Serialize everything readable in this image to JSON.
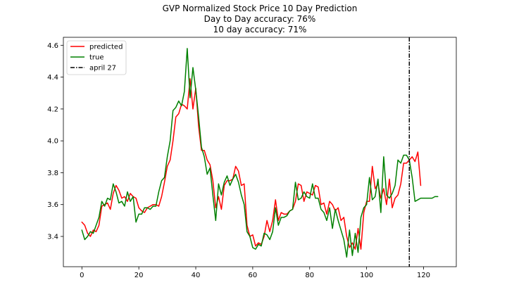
{
  "chart_data": {
    "type": "line",
    "title_lines": [
      "GVP Normalized Stock Price 10 Day Prediction",
      "Day to Day accuracy: 76%",
      "10 day accuracy: 71%"
    ],
    "xlabel": "",
    "ylabel": "",
    "xlim": [
      -6.5,
      131.5
    ],
    "ylim": [
      3.21,
      4.65
    ],
    "x_ticks": [
      0,
      20,
      40,
      60,
      80,
      100,
      120
    ],
    "y_ticks": [
      3.4,
      3.6,
      3.8,
      4.0,
      4.2,
      4.4,
      4.6
    ],
    "y_tick_labels": [
      "3.4",
      "3.6",
      "3.8",
      "4.0",
      "4.2",
      "4.4",
      "4.6"
    ],
    "legend_position": "upper-left",
    "vline": {
      "name": "april 27",
      "x": 115,
      "color": "#000000",
      "style": "dash-dot"
    },
    "series": [
      {
        "name": "predicted",
        "color": "#ff0000",
        "x_start": 0,
        "values": [
          3.49,
          3.47,
          3.42,
          3.4,
          3.44,
          3.43,
          3.47,
          3.59,
          3.6,
          3.61,
          3.57,
          3.67,
          3.72,
          3.69,
          3.64,
          3.65,
          3.62,
          3.67,
          3.65,
          3.64,
          3.58,
          3.56,
          3.55,
          3.58,
          3.59,
          3.6,
          3.6,
          3.59,
          3.65,
          3.74,
          3.84,
          3.88,
          4.0,
          4.15,
          4.17,
          4.23,
          4.22,
          4.2,
          4.39,
          4.2,
          4.33,
          4.09,
          3.94,
          3.94,
          3.88,
          3.85,
          3.75,
          3.58,
          3.65,
          3.57,
          3.72,
          3.75,
          3.75,
          3.76,
          3.84,
          3.81,
          3.72,
          3.73,
          3.47,
          3.4,
          3.41,
          3.34,
          3.36,
          3.35,
          3.4,
          3.5,
          3.43,
          3.5,
          3.63,
          3.5,
          3.55,
          3.54,
          3.54,
          3.56,
          3.57,
          3.62,
          3.73,
          3.72,
          3.62,
          3.68,
          3.67,
          3.66,
          3.72,
          3.71,
          3.6,
          3.61,
          3.54,
          3.62,
          3.6,
          3.56,
          3.58,
          3.5,
          3.52,
          3.4,
          3.33,
          3.36,
          3.32,
          3.45,
          3.32,
          3.55,
          3.62,
          3.62,
          3.84,
          3.7,
          3.73,
          3.64,
          3.7,
          3.6,
          3.76,
          3.58,
          3.64,
          3.66,
          3.73,
          3.86,
          3.86,
          3.88,
          3.9,
          3.87,
          3.93,
          3.72
        ]
      },
      {
        "name": "true",
        "color": "#008000",
        "x_start": 0,
        "values": [
          3.44,
          3.38,
          3.4,
          3.43,
          3.42,
          3.47,
          3.52,
          3.62,
          3.59,
          3.64,
          3.63,
          3.73,
          3.68,
          3.61,
          3.62,
          3.59,
          3.68,
          3.62,
          3.65,
          3.49,
          3.54,
          3.54,
          3.58,
          3.58,
          3.57,
          3.59,
          3.59,
          3.68,
          3.75,
          3.77,
          3.9,
          4.0,
          4.19,
          4.21,
          4.25,
          4.22,
          4.31,
          4.58,
          4.27,
          4.46,
          4.32,
          4.15,
          3.96,
          3.9,
          3.79,
          3.83,
          3.66,
          3.5,
          3.73,
          3.66,
          3.74,
          3.78,
          3.72,
          3.76,
          3.79,
          3.74,
          3.66,
          3.6,
          3.43,
          3.4,
          3.33,
          3.32,
          3.35,
          3.34,
          3.42,
          3.41,
          3.38,
          3.43,
          3.58,
          3.47,
          3.52,
          3.52,
          3.53,
          3.56,
          3.57,
          3.74,
          3.63,
          3.64,
          3.68,
          3.65,
          3.64,
          3.73,
          3.64,
          3.64,
          3.57,
          3.55,
          3.5,
          3.58,
          3.45,
          3.57,
          3.5,
          3.44,
          3.38,
          3.27,
          3.44,
          3.28,
          3.42,
          3.3,
          3.52,
          3.58,
          3.6,
          3.77,
          3.63,
          3.65,
          3.76,
          3.55,
          3.9,
          3.66,
          3.64,
          3.67,
          3.72,
          3.88,
          3.86,
          3.91,
          3.91,
          3.88,
          3.77,
          3.62,
          3.63,
          3.64,
          3.64,
          3.64,
          3.64,
          3.64,
          3.65,
          3.65
        ]
      }
    ]
  }
}
